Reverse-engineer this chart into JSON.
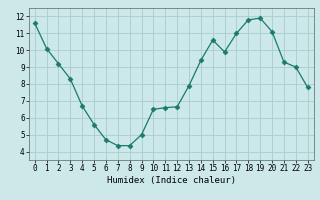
{
  "x": [
    0,
    1,
    2,
    3,
    4,
    5,
    6,
    7,
    8,
    9,
    10,
    11,
    12,
    13,
    14,
    15,
    16,
    17,
    18,
    19,
    20,
    21,
    22,
    23
  ],
  "y": [
    11.6,
    10.1,
    9.2,
    8.3,
    6.7,
    5.6,
    4.7,
    4.35,
    4.35,
    5.0,
    6.5,
    6.6,
    6.65,
    7.9,
    9.4,
    10.6,
    9.9,
    11.0,
    11.8,
    11.9,
    11.1,
    9.3,
    9.0,
    7.8
  ],
  "line_color": "#1a7a6e",
  "marker": "D",
  "marker_size": 2.5,
  "bg_color": "#cce8e8",
  "grid_color": "#aacccc",
  "xlabel": "Humidex (Indice chaleur)",
  "ylim": [
    3.5,
    12.5
  ],
  "xlim": [
    -0.5,
    23.5
  ],
  "yticks": [
    4,
    5,
    6,
    7,
    8,
    9,
    10,
    11,
    12
  ],
  "xticks": [
    0,
    1,
    2,
    3,
    4,
    5,
    6,
    7,
    8,
    9,
    10,
    11,
    12,
    13,
    14,
    15,
    16,
    17,
    18,
    19,
    20,
    21,
    22,
    23
  ],
  "label_fontsize": 6.5,
  "tick_fontsize": 5.5
}
